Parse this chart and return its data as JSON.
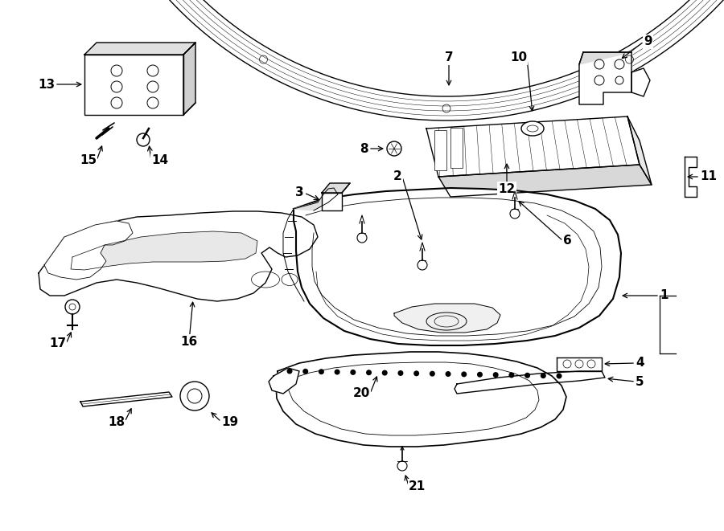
{
  "bg_color": "#ffffff",
  "line_color": "#000000",
  "label_color": "#000000",
  "figsize": [
    9.0,
    6.61
  ],
  "dpi": 100,
  "label_fontsize": 11
}
